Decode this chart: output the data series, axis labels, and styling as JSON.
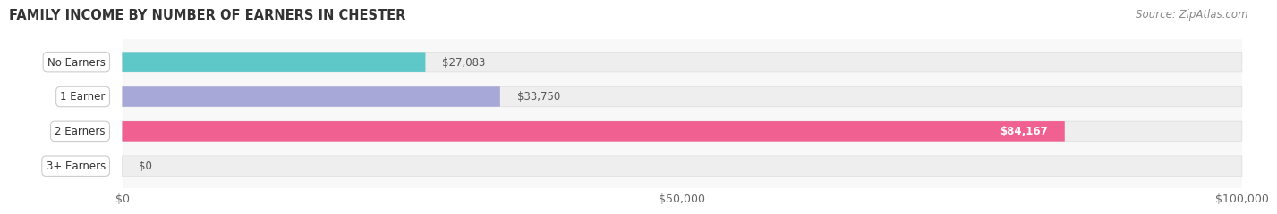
{
  "title": "FAMILY INCOME BY NUMBER OF EARNERS IN CHESTER",
  "source": "Source: ZipAtlas.com",
  "categories": [
    "No Earners",
    "1 Earner",
    "2 Earners",
    "3+ Earners"
  ],
  "values": [
    27083,
    33750,
    84167,
    0
  ],
  "bar_colors": [
    "#5ec8c8",
    "#a8a8d8",
    "#f06090",
    "#f5c899"
  ],
  "bar_bg_color": "#eeeeee",
  "value_labels": [
    "$27,083",
    "$33,750",
    "$84,167",
    "$0"
  ],
  "xlim": [
    0,
    100000
  ],
  "xticks": [
    0,
    50000,
    100000
  ],
  "xtick_labels": [
    "$0",
    "$50,000",
    "$100,000"
  ],
  "title_fontsize": 10.5,
  "source_fontsize": 8.5,
  "bar_height": 0.58,
  "fig_bg_color": "#ffffff",
  "axes_bg_color": "#f8f8f8"
}
